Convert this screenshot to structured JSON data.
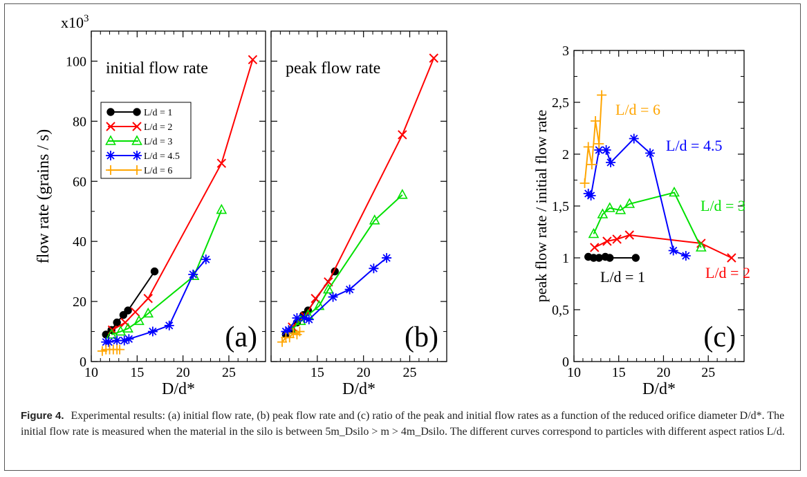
{
  "figure_label": "Figure 4.",
  "caption_text": "Experimental results: (a) initial flow rate, (b) peak flow rate and (c) ratio of the peak and initial flow rates as a function of the reduced orifice diameter D/d*. The initial flow rate is measured when the material in the silo is between 5m_Dsilo > m > 4m_Dsilo. The different curves correspond to particles with different aspect ratios L/d.",
  "colors": {
    "L1": "#000000",
    "L2": "#ff0000",
    "L3": "#00e000",
    "L4_5": "#0000ff",
    "L6": "#ffa500"
  },
  "chart_data": [
    {
      "panel": "(a)",
      "type": "line",
      "title": "initial flow rate",
      "xlabel": "D/d*",
      "ylabel": "flow rate (grains / s)",
      "y_multiplier": "x10^3",
      "xlim": [
        10,
        29
      ],
      "ylim": [
        0,
        110
      ],
      "xticks": [
        10,
        15,
        20,
        25
      ],
      "yticks": [
        0,
        20,
        40,
        60,
        80,
        100
      ],
      "legend": [
        "L/d = 1",
        "L/d = 2",
        "L/d = 3",
        "L/d = 4.5",
        "L/d = 6"
      ],
      "series": [
        {
          "name": "L/d = 1",
          "marker": "circle",
          "x": [
            11.6,
            12.2,
            12.8,
            13.5,
            14.0,
            16.9
          ],
          "y": [
            9,
            10.5,
            13,
            15.5,
            17,
            30
          ]
        },
        {
          "name": "L/d = 2",
          "marker": "x",
          "x": [
            12.3,
            13.7,
            14.8,
            16.2,
            24.2,
            27.6
          ],
          "y": [
            10.5,
            13,
            16.5,
            21,
            66,
            100.5
          ]
        },
        {
          "name": "L/d = 3",
          "marker": "triangle",
          "x": [
            12.2,
            13.2,
            14.0,
            15.2,
            16.2,
            21.2,
            24.2
          ],
          "y": [
            9,
            10,
            11,
            13.5,
            16,
            28.5,
            50.5
          ]
        },
        {
          "name": "L/d = 4.5",
          "marker": "asterisk",
          "x": [
            11.6,
            11.9,
            12.8,
            13.6,
            14.1,
            16.7,
            18.5,
            21.1,
            22.5
          ],
          "y": [
            6.5,
            6.5,
            7,
            7,
            7.5,
            10,
            12,
            29,
            34
          ]
        },
        {
          "name": "L/d = 6",
          "marker": "plus",
          "x": [
            11.2,
            11.6,
            12.0,
            12.4,
            12.8,
            13.1
          ],
          "y": [
            3.5,
            4,
            4,
            4,
            4,
            4
          ]
        }
      ]
    },
    {
      "panel": "(b)",
      "type": "line",
      "title": "peak flow rate",
      "xlabel": "D/d*",
      "xlim": [
        10,
        29
      ],
      "ylim": [
        0,
        110
      ],
      "xticks": [
        10,
        15,
        20,
        25
      ],
      "series": [
        {
          "name": "L/d = 1",
          "marker": "circle",
          "x": [
            11.6,
            12.2,
            12.8,
            13.5,
            14.0,
            16.9
          ],
          "y": [
            9,
            10.5,
            13,
            15.5,
            17,
            30
          ]
        },
        {
          "name": "L/d = 2",
          "marker": "x",
          "x": [
            12.3,
            13.7,
            14.8,
            16.2,
            24.2,
            27.6
          ],
          "y": [
            11.5,
            15,
            21,
            26.5,
            75.5,
            101
          ]
        },
        {
          "name": "L/d = 3",
          "marker": "triangle",
          "x": [
            12.2,
            13.2,
            14.0,
            15.2,
            16.2,
            21.2,
            24.2
          ],
          "y": [
            10.5,
            13.5,
            15.5,
            18.5,
            24,
            47,
            55.5
          ]
        },
        {
          "name": "L/d = 4.5",
          "marker": "asterisk",
          "x": [
            11.6,
            11.9,
            12.8,
            13.6,
            14.1,
            16.7,
            18.5,
            21.1,
            22.5
          ],
          "y": [
            10,
            10.5,
            14.5,
            14.5,
            14,
            21.5,
            24,
            31,
            34.5
          ]
        },
        {
          "name": "L/d = 6",
          "marker": "plus",
          "x": [
            11.2,
            11.6,
            12.0,
            12.4,
            12.8,
            13.1
          ],
          "y": [
            6.5,
            8,
            8,
            9.5,
            9,
            10
          ]
        }
      ]
    },
    {
      "panel": "(c)",
      "type": "line",
      "xlabel": "D/d*",
      "ylabel": "peak flow rate / initial flow rate",
      "xlim": [
        10,
        29
      ],
      "ylim": [
        0,
        3
      ],
      "xticks": [
        10,
        15,
        20,
        25
      ],
      "yticks": [
        "0",
        "0,5",
        "1",
        "1,5",
        "2",
        "2,5",
        "3"
      ],
      "series": [
        {
          "name": "L/d = 1",
          "label": "L/d = 1",
          "marker": "circle",
          "x": [
            11.6,
            12.2,
            12.8,
            13.5,
            14.0,
            16.9
          ],
          "y": [
            1.01,
            1.0,
            1.0,
            1.01,
            1.0,
            1.0
          ]
        },
        {
          "name": "L/d = 2",
          "label": "L/d = 2",
          "marker": "x",
          "x": [
            12.3,
            13.7,
            14.8,
            16.2,
            24.2,
            27.6
          ],
          "y": [
            1.1,
            1.16,
            1.18,
            1.22,
            1.14,
            1.0
          ]
        },
        {
          "name": "L/d = 3",
          "label": "L/d = 3",
          "marker": "triangle",
          "x": [
            12.2,
            13.2,
            14.0,
            15.2,
            16.2,
            21.2,
            24.2
          ],
          "y": [
            1.23,
            1.42,
            1.48,
            1.46,
            1.52,
            1.63,
            1.1
          ]
        },
        {
          "name": "L/d = 4.5",
          "label": "L/d = 4.5",
          "marker": "asterisk",
          "x": [
            11.6,
            11.9,
            12.8,
            13.6,
            14.1,
            16.7,
            18.5,
            21.1,
            22.5
          ],
          "y": [
            1.62,
            1.6,
            2.04,
            2.04,
            1.92,
            2.15,
            2.01,
            1.07,
            1.02
          ]
        },
        {
          "name": "L/d = 6",
          "label": "L/d = 6",
          "marker": "plus",
          "x": [
            11.2,
            11.6,
            12.0,
            12.4,
            12.8,
            13.1
          ],
          "y": [
            1.72,
            2.07,
            1.9,
            2.32,
            2.1,
            2.57
          ]
        }
      ]
    }
  ]
}
